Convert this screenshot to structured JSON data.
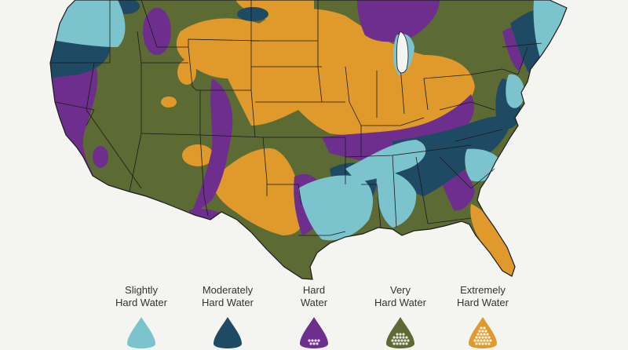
{
  "map": {
    "colors": {
      "slightly": "#7cc4cd",
      "moderately": "#1f4a63",
      "hard": "#6e2e8e",
      "very": "#5c6a34",
      "extremely": "#e09a2b",
      "ocean": "#f4f4f1",
      "borders": "#1a1a1a"
    }
  },
  "legend": [
    {
      "line1": "Slightly",
      "line2": "Hard Water",
      "color": "#7cc4cd",
      "dots": 0
    },
    {
      "line1": "Moderately",
      "line2": "Hard Water",
      "color": "#1f4a63",
      "dots": 0
    },
    {
      "line1": "Hard",
      "line2": "Water",
      "color": "#6e2e8e",
      "dots": 1
    },
    {
      "line1": "Very",
      "line2": "Hard Water",
      "color": "#5c6a34",
      "dots": 2
    },
    {
      "line1": "Extremely",
      "line2": "Hard Water",
      "color": "#e09a2b",
      "dots": 3
    }
  ]
}
